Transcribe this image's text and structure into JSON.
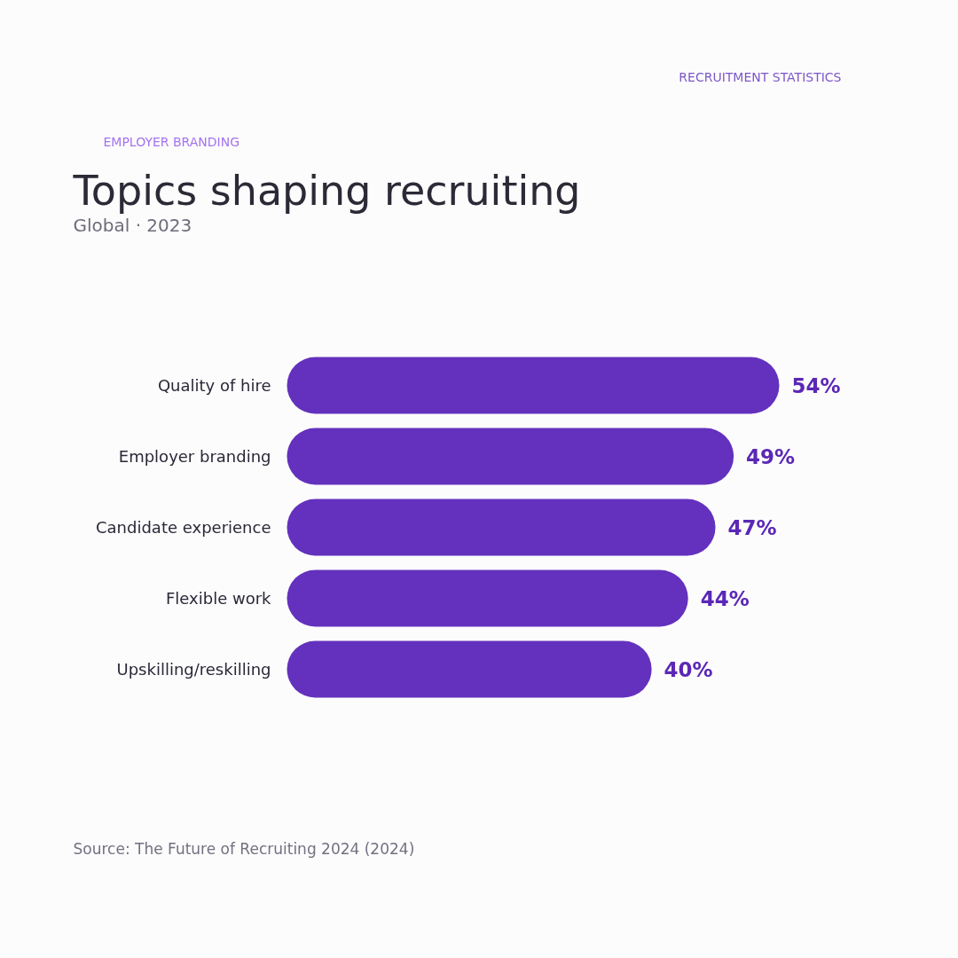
{
  "chart_data": {
    "type": "bar",
    "orientation": "horizontal",
    "title": "Topics shaping recruiting",
    "subtitle": "Global · 2023",
    "annotations": [
      "RECRUITMENT STATISTICS",
      "EMPLOYER BRANDING",
      "Source: The Future of Recruiting 2024 (2024)"
    ],
    "categories": [
      "Quality of hire",
      "Employer branding",
      "Candidate experience",
      "Flexible work",
      "Upskilling/reskilling"
    ],
    "values": [
      54,
      49,
      47,
      44,
      40
    ],
    "value_labels": [
      "54%",
      "49%",
      "47%",
      "44%",
      "40%"
    ],
    "color": "#6331bd"
  }
}
